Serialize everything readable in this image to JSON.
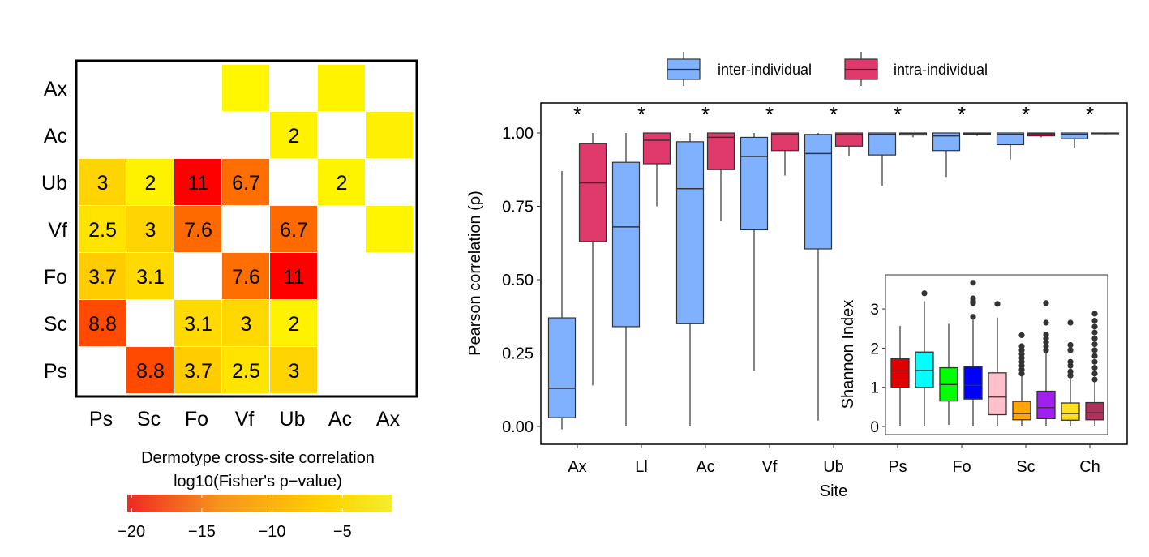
{
  "chart_data": [
    {
      "type": "heatmap",
      "x_categories": [
        "Ps",
        "Sc",
        "Fo",
        "Vf",
        "Ub",
        "Ac",
        "Ax"
      ],
      "y_categories": [
        "Ax",
        "Ac",
        "Ub",
        "Vf",
        "Fo",
        "Sc",
        "Ps"
      ],
      "cells": [
        {
          "row": "Ax",
          "col": "Vf",
          "label": null,
          "color": "#FFF700"
        },
        {
          "row": "Ax",
          "col": "Ac",
          "label": null,
          "color": "#FFF300"
        },
        {
          "row": "Ac",
          "col": "Ub",
          "label": "2",
          "color": "#FFF200"
        },
        {
          "row": "Ac",
          "col": "Ax",
          "label": null,
          "color": "#FFEF00"
        },
        {
          "row": "Ub",
          "col": "Ps",
          "label": "3",
          "color": "#FFD400"
        },
        {
          "row": "Ub",
          "col": "Sc",
          "label": "2",
          "color": "#FFF200"
        },
        {
          "row": "Ub",
          "col": "Fo",
          "label": "11",
          "color": "#FF0000"
        },
        {
          "row": "Ub",
          "col": "Vf",
          "label": "6.7",
          "color": "#FF6E00"
        },
        {
          "row": "Ub",
          "col": "Ac",
          "label": "2",
          "color": "#FFF400"
        },
        {
          "row": "Vf",
          "col": "Ps",
          "label": "2.5",
          "color": "#FFE400"
        },
        {
          "row": "Vf",
          "col": "Sc",
          "label": "3",
          "color": "#FFD400"
        },
        {
          "row": "Vf",
          "col": "Fo",
          "label": "7.6",
          "color": "#FF6A00"
        },
        {
          "row": "Vf",
          "col": "Ub",
          "label": "6.7",
          "color": "#FF6A00"
        },
        {
          "row": "Vf",
          "col": "Ax",
          "label": null,
          "color": "#FFF500"
        },
        {
          "row": "Fo",
          "col": "Ps",
          "label": "3.7",
          "color": "#FFCC00"
        },
        {
          "row": "Fo",
          "col": "Sc",
          "label": "3.1",
          "color": "#FFDA00"
        },
        {
          "row": "Fo",
          "col": "Vf",
          "label": "7.6",
          "color": "#FF6E00"
        },
        {
          "row": "Fo",
          "col": "Ub",
          "label": "11",
          "color": "#FF0000"
        },
        {
          "row": "Sc",
          "col": "Ps",
          "label": "8.8",
          "color": "#FF4A00"
        },
        {
          "row": "Sc",
          "col": "Fo",
          "label": "3.1",
          "color": "#FFDA00"
        },
        {
          "row": "Sc",
          "col": "Vf",
          "label": "3",
          "color": "#FFD800"
        },
        {
          "row": "Sc",
          "col": "Ub",
          "label": "2",
          "color": "#FFF200"
        },
        {
          "row": "Ps",
          "col": "Sc",
          "label": "8.8",
          "color": "#FF4A00"
        },
        {
          "row": "Ps",
          "col": "Fo",
          "label": "3.7",
          "color": "#FFCC00"
        },
        {
          "row": "Ps",
          "col": "Vf",
          "label": "2.5",
          "color": "#FFE400"
        },
        {
          "row": "Ps",
          "col": "Ub",
          "label": "3",
          "color": "#FFD400"
        }
      ],
      "colorbar": {
        "title_line1": "Dermotype cross-site correlation",
        "title_line2": "log10(Fisher's p−value)",
        "range": [
          -20.3,
          -1.5
        ],
        "ticks": [
          "−20",
          "−15",
          "−10",
          "−5"
        ],
        "tick_values": [
          -20,
          -15,
          -10,
          -5
        ],
        "colors": [
          "#EE2A24",
          "#F7931E",
          "#FFD200",
          "#F4EE2A"
        ]
      }
    },
    {
      "type": "box",
      "xlabel": "Site",
      "ylabel": "Pearson correlation (ρ)",
      "ylim": [
        -0.03,
        1.1
      ],
      "yticks": [
        "0.00",
        "0.25",
        "0.50",
        "0.75",
        "1.00"
      ],
      "ytick_values": [
        0,
        0.25,
        0.5,
        0.75,
        1.0
      ],
      "categories": [
        "Ax",
        "Ll",
        "Ac",
        "Vf",
        "Ub",
        "Ps",
        "Fo",
        "Sc",
        "Ch"
      ],
      "significance": [
        "*",
        "*",
        "*",
        "*",
        "*",
        "*",
        "*",
        "*",
        "*"
      ],
      "legend": {
        "placement": "top",
        "items": [
          {
            "name": "inter-individual",
            "color": "#80B1FF"
          },
          {
            "name": "intra-individual",
            "color": "#E0396B"
          }
        ]
      },
      "series": [
        {
          "name": "inter-individual",
          "color": "#80B1FF",
          "boxes": [
            [
              -0.01,
              0.03,
              0.13,
              0.37,
              0.87
            ],
            [
              0.0,
              0.34,
              0.68,
              0.9,
              1.0
            ],
            [
              0.0,
              0.35,
              0.81,
              0.97,
              1.0
            ],
            [
              0.19,
              0.67,
              0.92,
              0.985,
              1.0
            ],
            [
              0.02,
              0.605,
              0.93,
              0.995,
              1.0
            ],
            [
              0.82,
              0.925,
              0.995,
              1.0,
              1.0
            ],
            [
              0.85,
              0.94,
              0.99,
              1.0,
              1.0
            ],
            [
              0.91,
              0.96,
              0.995,
              1.0,
              1.0
            ],
            [
              0.95,
              0.98,
              0.995,
              1.0,
              1.0
            ]
          ]
        },
        {
          "name": "intra-individual",
          "color": "#E0396B",
          "boxes": [
            [
              0.14,
              0.63,
              0.83,
              0.965,
              1.0
            ],
            [
              0.75,
              0.895,
              0.975,
              1.0,
              1.0
            ],
            [
              0.7,
              0.875,
              0.985,
              1.0,
              1.0
            ],
            [
              0.855,
              0.94,
              0.995,
              1.0,
              1.0
            ],
            [
              0.92,
              0.955,
              0.995,
              1.0,
              1.0
            ],
            [
              0.985,
              0.993,
              0.998,
              1.0,
              1.0
            ],
            [
              0.99,
              0.995,
              0.998,
              1.0,
              1.0
            ],
            [
              0.985,
              0.99,
              0.997,
              1.0,
              1.0
            ],
            [
              0.995,
              0.998,
              0.999,
              1.0,
              1.0
            ]
          ]
        }
      ]
    },
    {
      "type": "box",
      "inset": true,
      "ylabel": "Shannon Index",
      "ylim": [
        -0.1,
        3.8
      ],
      "yticks": [
        "0",
        "1",
        "2",
        "3"
      ],
      "ytick_values": [
        0,
        1,
        2,
        3
      ],
      "boxes": [
        {
          "color": "#E00000",
          "stats": [
            0,
            1.0,
            1.42,
            1.73,
            2.57
          ],
          "outliers": []
        },
        {
          "color": "#00FFFF",
          "stats": [
            0,
            1.0,
            1.43,
            1.9,
            3.2
          ],
          "outliers": [
            3.4
          ]
        },
        {
          "color": "#00FF00",
          "stats": [
            0.04,
            0.65,
            1.07,
            1.5,
            2.62
          ],
          "outliers": []
        },
        {
          "color": "#0000FF",
          "stats": [
            0,
            0.7,
            1.05,
            1.53,
            2.75
          ],
          "outliers": [
            2.8,
            3.15,
            3.2,
            3.27,
            3.67
          ]
        },
        {
          "color": "#FFC0CB",
          "stats": [
            0,
            0.3,
            0.75,
            1.37,
            2.78
          ],
          "outliers": [
            3.13
          ]
        },
        {
          "color": "#FFA500",
          "stats": [
            0,
            0.17,
            0.33,
            0.64,
            1.3
          ],
          "outliers": [
            1.35,
            1.45,
            1.55,
            1.65,
            1.75,
            1.85,
            1.95,
            2.05,
            2.33
          ]
        },
        {
          "color": "#A020F0",
          "stats": [
            0,
            0.2,
            0.48,
            0.9,
            1.9
          ],
          "outliers": [
            1.95,
            2.05,
            2.15,
            2.25,
            2.35,
            2.65,
            3.15
          ]
        },
        {
          "color": "#FFE01F",
          "stats": [
            0,
            0.16,
            0.33,
            0.6,
            1.2
          ],
          "outliers": [
            1.3,
            1.4,
            1.55,
            1.65,
            1.95,
            2.08,
            2.65
          ]
        },
        {
          "color": "#B0305C",
          "stats": [
            0,
            0.17,
            0.35,
            0.61,
            1.15
          ],
          "outliers": [
            1.2,
            1.35,
            1.5,
            1.65,
            1.8,
            1.95,
            2.1,
            2.25,
            2.4,
            2.55,
            2.7,
            2.88
          ]
        }
      ]
    }
  ]
}
